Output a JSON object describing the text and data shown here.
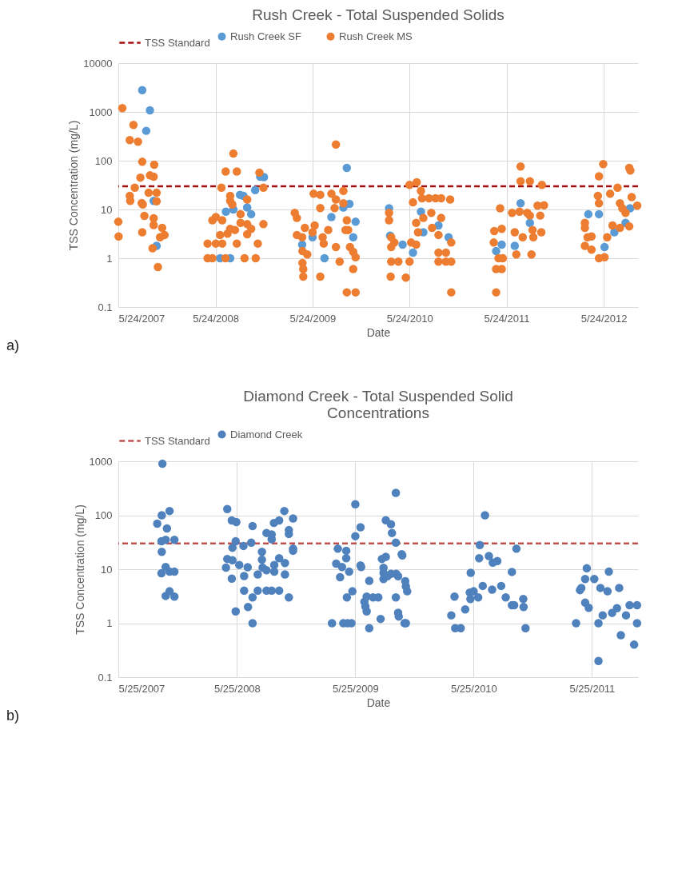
{
  "chart_data": [
    {
      "type": "scatter",
      "title": "Rush Creek - Total Suspended Solids",
      "xlabel": "Date",
      "ylabel": "TSS Concentration (mg/L)",
      "log": true,
      "grid": true,
      "legend": "top",
      "marker": "circle",
      "annotations": [
        "a)"
      ],
      "xlim": [
        "2007-05-24",
        "2012-09-30"
      ],
      "xticks": [
        {
          "value": "2007-05-24",
          "label": "5/24/2007"
        },
        {
          "value": "2008-05-24",
          "label": "5/24/2008"
        },
        {
          "value": "2009-05-24",
          "label": "5/24/2009"
        },
        {
          "value": "2010-05-24",
          "label": "5/24/2010"
        },
        {
          "value": "2011-05-24",
          "label": "5/24/2011"
        },
        {
          "value": "2012-05-24",
          "label": "5/24/2012"
        }
      ],
      "ylim": [
        0.1,
        10000
      ],
      "yticks": [
        0.1,
        1,
        10,
        100,
        1000,
        10000
      ],
      "ref_lines": [
        {
          "axis": "y",
          "value": 30,
          "label": "TSS Standard",
          "color": "#a50e0e",
          "line_style": "dashed"
        }
      ],
      "series": [
        {
          "name": "Rush Creek SF",
          "color": "#5b9bd5",
          "x": [
            "2007-08-22",
            "2007-09-20",
            "2007-09-06",
            "2007-10-04",
            "2007-10-15",
            "2008-06-10",
            "2008-07-18",
            "2008-07-02",
            "2008-07-30",
            "2008-08-24",
            "2008-09-06",
            "2008-09-20",
            "2008-10-05",
            "2008-10-20",
            "2008-11-08",
            "2008-11-22",
            "2009-04-15",
            "2009-05-24",
            "2009-07-08",
            "2009-08-03",
            "2009-09-17",
            "2009-09-30",
            "2009-10-10",
            "2009-11-02",
            "2009-10-24",
            "2010-03-08",
            "2010-03-12",
            "2010-04-28",
            "2010-06-06",
            "2010-07-06",
            "2010-07-15",
            "2010-09-10",
            "2010-10-18",
            "2011-04-15",
            "2011-05-06",
            "2011-06-24",
            "2011-07-16",
            "2011-08-20",
            "2012-03-27",
            "2012-05-06",
            "2012-05-27",
            "2012-07-03",
            "2012-08-14",
            "2012-08-31"
          ],
          "values": [
            2800,
            1080,
            410,
            15,
            1.8,
            1,
            1,
            9,
            10,
            20,
            19,
            11,
            8,
            25,
            47,
            46,
            1.9,
            2.7,
            1,
            7,
            11,
            71,
            13,
            5.6,
            2.7,
            10.6,
            2.9,
            1.9,
            1.3,
            9,
            3.4,
            4.7,
            2.7,
            1.4,
            1.9,
            1.8,
            13.4,
            5.3,
            8,
            8,
            1.7,
            3.4,
            5.3,
            10.6
          ]
        },
        {
          "name": "Rush Creek MS",
          "color": "#ed7d31",
          "x": [
            "2007-05-24",
            "2007-05-25",
            "2007-06-08",
            "2007-07-20",
            "2007-07-06",
            "2007-08-06",
            "2007-08-22",
            "2007-10-06",
            "2007-08-15",
            "2007-09-20",
            "2007-10-04",
            "2007-07-25",
            "2007-07-06",
            "2007-07-08",
            "2007-08-20",
            "2007-08-24",
            "2007-09-15",
            "2007-10-15",
            "2007-10-15",
            "2007-08-30",
            "2007-10-04",
            "2007-10-04",
            "2007-11-05",
            "2007-10-28",
            "2007-11-14",
            "2007-08-22",
            "2007-09-30",
            "2007-10-20",
            "2008-06-15",
            "2008-07-01",
            "2008-07-30",
            "2008-08-12",
            "2008-11-05",
            "2008-11-20",
            "2008-05-12",
            "2008-05-25",
            "2008-06-18",
            "2008-04-24",
            "2008-05-25",
            "2008-06-18",
            "2008-04-24",
            "2008-05-12",
            "2008-06-30",
            "2008-06-10",
            "2008-07-08",
            "2008-07-18",
            "2008-08-05",
            "2008-08-12",
            "2008-08-26",
            "2008-08-26",
            "2008-09-20",
            "2008-10-05",
            "2008-09-20",
            "2008-09-10",
            "2008-10-22",
            "2008-10-30",
            "2008-11-20",
            "2008-07-18",
            "2008-07-18",
            "2008-07-26",
            "2008-09-20",
            "2009-03-18",
            "2009-03-26",
            "2009-03-26",
            "2009-04-15",
            "2009-04-16",
            "2009-04-16",
            "2009-04-19",
            "2009-04-19",
            "2009-05-04",
            "2009-05-24",
            "2009-08-20",
            "2009-05-28",
            "2009-06-22",
            "2009-06-22",
            "2009-06-22",
            "2009-06-01",
            "2009-07-01",
            "2009-07-05",
            "2009-08-03",
            "2009-08-20",
            "2009-08-15",
            "2009-08-20",
            "2009-09-03",
            "2009-09-17",
            "2009-09-17",
            "2009-07-22",
            "2009-04-25",
            "2009-09-30",
            "2009-09-25",
            "2009-10-05",
            "2009-10-12",
            "2009-10-24",
            "2009-11-02",
            "2009-10-24",
            "2009-09-30",
            "2009-11-02",
            "2010-03-08",
            "2010-03-08",
            "2010-03-16",
            "2010-03-16",
            "2010-03-16",
            "2010-03-14",
            "2010-05-10",
            "2010-03-28",
            "2010-04-12",
            "2010-05-24",
            "2010-05-24",
            "2010-06-20",
            "2010-07-06",
            "2010-06-06",
            "2010-07-10",
            "2010-08-05",
            "2010-08-30",
            "2010-09-20",
            "2010-10-24",
            "2010-06-18",
            "2010-07-15",
            "2010-08-14",
            "2010-09-20",
            "2010-05-30",
            "2010-06-18",
            "2010-06-25",
            "2010-09-10",
            "2010-09-10",
            "2010-09-10",
            "2010-10-08",
            "2010-10-08",
            "2010-10-28",
            "2010-10-28",
            "2010-10-28",
            "2010-08-17",
            "2011-04-15",
            "2011-04-15",
            "2011-05-06",
            "2011-04-24",
            "2011-05-10",
            "2011-04-06",
            "2011-04-08",
            "2011-05-06",
            "2011-04-30",
            "2011-06-24",
            "2011-06-30",
            "2011-08-26",
            "2011-07-16",
            "2011-07-16",
            "2011-08-20",
            "2011-10-04",
            "2011-06-14",
            "2011-07-12",
            "2011-08-10",
            "2011-08-20",
            "2011-09-18",
            "2011-10-12",
            "2011-09-28",
            "2011-10-02",
            "2011-09-02",
            "2011-07-24",
            "2011-08-30",
            "2012-05-22",
            "2012-05-06",
            "2012-08-28",
            "2012-09-01",
            "2012-07-15",
            "2012-06-17",
            "2012-05-02",
            "2012-05-06",
            "2012-07-24",
            "2012-09-06",
            "2012-09-27",
            "2012-08-02",
            "2012-03-14",
            "2012-03-14",
            "2012-03-24",
            "2012-03-14",
            "2012-04-08",
            "2012-04-08",
            "2012-05-06",
            "2012-05-27",
            "2012-06-06",
            "2012-06-26",
            "2012-07-24",
            "2012-08-28",
            "2012-08-14"
          ],
          "values": [
            5.6,
            2.8,
            1200,
            540,
            265,
            245,
            95,
            83,
            45,
            50,
            47,
            28,
            19,
            15,
            13.5,
            12.7,
            22,
            22,
            14.7,
            7.4,
            6.6,
            4.8,
            4.2,
            2.7,
            3,
            3.4,
            1.6,
            0.66,
            28,
            60,
            140,
            60,
            57,
            28,
            6,
            7,
            6,
            2,
            2,
            2,
            1,
            1,
            1,
            3,
            3.2,
            4,
            3.8,
            2,
            8,
            5.3,
            5,
            4,
            3.1,
            1,
            1,
            2,
            5,
            19,
            15,
            12.7,
            16,
            8.5,
            6.7,
            3,
            2.7,
            1.4,
            0.8,
            0.6,
            0.42,
            1.2,
            3.4,
            215,
            21,
            20,
            10.7,
            0.42,
            4.7,
            2.7,
            2,
            21,
            16,
            10.7,
            1.7,
            0.85,
            24,
            13.4,
            3.8,
            4.2,
            6,
            3.8,
            3.8,
            1.7,
            1.35,
            1.05,
            0.6,
            0.2,
            0.2,
            8.5,
            6,
            2.7,
            1.7,
            0.85,
            0.42,
            0.4,
            2.1,
            0.85,
            0.85,
            32,
            36,
            24,
            14,
            16.9,
            17,
            17,
            17,
            16,
            5.3,
            6.7,
            8.5,
            6.7,
            2.1,
            1.9,
            3.4,
            3,
            1.3,
            0.85,
            1.3,
            0.85,
            0.85,
            2.1,
            0.2,
            4.2,
            0.2,
            0.6,
            0.6,
            1,
            1,
            2.1,
            3.6,
            4,
            10.6,
            3.4,
            1.2,
            1.2,
            76,
            38,
            38,
            32,
            8.5,
            9,
            8.5,
            7.5,
            12,
            12.2,
            7.5,
            3.4,
            2.7,
            2.7,
            3.8,
            85,
            48,
            71,
            63,
            28,
            21,
            19,
            13.4,
            13.4,
            17.9,
            12,
            10.6,
            5.3,
            4.2,
            2.7,
            1.8,
            2.8,
            1.5,
            1,
            1.05,
            2.7,
            4.7,
            4.2,
            4.5,
            8.5
          ]
        }
      ]
    },
    {
      "type": "scatter",
      "title": "Diamond Creek -  Total Suspended Solid Concentrations",
      "xlabel": "Date",
      "ylabel": "TSS Concentration (mg/L)",
      "log": true,
      "grid": true,
      "legend": "top",
      "marker": "circle",
      "annotations": [
        "b)"
      ],
      "xlim": [
        "2007-05-25",
        "2011-10-14"
      ],
      "xticks": [
        {
          "value": "2007-05-25",
          "label": "5/25/2007"
        },
        {
          "value": "2008-05-25",
          "label": "5/25/2008"
        },
        {
          "value": "2009-05-25",
          "label": "5/25/2009"
        },
        {
          "value": "2010-05-25",
          "label": "5/25/2010"
        },
        {
          "value": "2011-05-25",
          "label": "5/25/2011"
        }
      ],
      "ylim": [
        0.1,
        1000
      ],
      "yticks": [
        0.1,
        1,
        10,
        100,
        1000
      ],
      "ref_lines": [
        {
          "axis": "y",
          "value": 30,
          "label": "TSS Standard",
          "color": "#c0504d",
          "line_style": "dashed"
        }
      ],
      "series": [
        {
          "name": "Diamond Creek",
          "color": "#4f81bd",
          "x": [
            "2007-10-08",
            "2007-09-22",
            "2007-10-06",
            "2007-10-30",
            "2007-10-22",
            "2007-10-05",
            "2007-10-18",
            "2007-11-14",
            "2007-10-06",
            "2007-10-18",
            "2007-10-05",
            "2007-10-30",
            "2007-11-14",
            "2007-10-18",
            "2007-10-30",
            "2007-11-14",
            "2008-04-25",
            "2008-05-09",
            "2008-05-23",
            "2008-05-21",
            "2008-05-11",
            "2008-06-14",
            "2008-07-08",
            "2008-07-12",
            "2008-04-25",
            "2008-05-11",
            "2008-04-21",
            "2008-06-01",
            "2008-06-27",
            "2008-05-09",
            "2008-06-16",
            "2008-06-16",
            "2008-07-12",
            "2008-06-28",
            "2008-05-21",
            "2008-07-12",
            "2008-07-28",
            "2008-08-10",
            "2008-08-10",
            "2008-07-28",
            "2008-08-12",
            "2008-08-24",
            "2008-08-24",
            "2008-09-09",
            "2008-10-02",
            "2008-08-24",
            "2008-09-09",
            "2008-09-09",
            "2008-09-16",
            "2008-10-02",
            "2008-10-18",
            "2008-11-14",
            "2008-11-01",
            "2008-11-01",
            "2008-11-14",
            "2008-11-14",
            "2008-09-17",
            "2008-09-17",
            "2008-10-02",
            "2008-10-20",
            "2008-10-20",
            "2008-11-01",
            "2009-03-14",
            "2009-03-27",
            "2009-04-14",
            "2009-04-08",
            "2009-04-01",
            "2009-04-27",
            "2009-04-27",
            "2009-04-18",
            "2009-05-01",
            "2009-04-29",
            "2009-05-06",
            "2009-05-16",
            "2009-05-13",
            "2009-05-25",
            "2009-05-25",
            "2009-06-10",
            "2009-06-10",
            "2009-06-12",
            "2009-07-07",
            "2009-06-29",
            "2009-06-22",
            "2009-06-25",
            "2009-06-29",
            "2009-07-07",
            "2009-07-19",
            "2009-08-04",
            "2009-08-11",
            "2009-08-15",
            "2009-08-27",
            "2009-08-20",
            "2009-08-20",
            "2009-08-20",
            "2009-09-01",
            "2009-09-12",
            "2009-08-27",
            "2009-09-12",
            "2009-09-15",
            "2009-09-27",
            "2009-09-27",
            "2009-09-28",
            "2009-10-04",
            "2009-10-15",
            "2009-10-17",
            "2009-09-27",
            "2009-10-04",
            "2009-10-06",
            "2009-10-24",
            "2009-10-28",
            "2009-10-26",
            "2009-11-01",
            "2009-10-28",
            "2010-03-17",
            "2010-03-29",
            "2010-04-15",
            "2010-03-27",
            "2010-04-29",
            "2010-05-13",
            "2010-05-16",
            "2010-05-15",
            "2010-05-25",
            "2010-06-08",
            "2010-06-13",
            "2010-06-29",
            "2010-06-11",
            "2010-07-11",
            "2010-07-23",
            "2010-08-06",
            "2010-06-22",
            "2010-07-21",
            "2010-08-18",
            "2010-09-01",
            "2010-09-20",
            "2010-09-27",
            "2010-09-20",
            "2010-10-04",
            "2010-10-25",
            "2010-10-26",
            "2010-11-01",
            "2011-04-06",
            "2011-04-18",
            "2011-04-22",
            "2011-05-04",
            "2011-05-09",
            "2011-05-04",
            "2011-05-15",
            "2011-06-01",
            "2011-06-14",
            "2011-06-14",
            "2011-06-27",
            "2011-06-20",
            "2011-07-12",
            "2011-07-16",
            "2011-07-26",
            "2011-08-10",
            "2011-08-17",
            "2011-08-22",
            "2011-09-07",
            "2011-09-18",
            "2011-10-11",
            "2011-10-11",
            "2011-10-02"
          ],
          "values": [
            900,
            70,
            100,
            120,
            57,
            33,
            35,
            35,
            21,
            11,
            8.4,
            9,
            9,
            3.2,
            3.9,
            3.1,
            130,
            80,
            75,
            33,
            25,
            27,
            31,
            63,
            15.5,
            14.7,
            10.7,
            12,
            10.9,
            6.7,
            7.5,
            4,
            3,
            2,
            1.65,
            1,
            4,
            21,
            15,
            8,
            10.7,
            9.6,
            4,
            4,
            4,
            47,
            44,
            36,
            72,
            80,
            120,
            87,
            53,
            45,
            24,
            22,
            12,
            9,
            16,
            13,
            8,
            3,
            1,
            12.7,
            11,
            7.1,
            24,
            22,
            16,
            1,
            1,
            3,
            9,
            3.9,
            1,
            41,
            160,
            60,
            11.8,
            11,
            6.1,
            3.1,
            2.5,
            2.05,
            1.65,
            0.81,
            3,
            3,
            1.2,
            15.5,
            17,
            10.6,
            8.6,
            6.6,
            7.4,
            8.2,
            81,
            68,
            47,
            260,
            31,
            8.2,
            7.4,
            19,
            18,
            3,
            1.56,
            1.33,
            1,
            1,
            6,
            3.9,
            4.8,
            1.4,
            0.81,
            0.81,
            3.1,
            1.8,
            3.7,
            8.6,
            2.8,
            3.9,
            3,
            28,
            100,
            16,
            17.6,
            13.2,
            14.2,
            4.9,
            4.2,
            4.9,
            3,
            2.15,
            2.15,
            8.9,
            24,
            2.8,
            2,
            0.81,
            1,
            4.1,
            4.5,
            6.6,
            10.4,
            2.4,
            1.93,
            6.6,
            1,
            0.2,
            1.4,
            4.5,
            3.9,
            9,
            1.55,
            1.9,
            4.5,
            0.6,
            1.4,
            2.15,
            2.15,
            1,
            0.4
          ]
        }
      ]
    }
  ]
}
